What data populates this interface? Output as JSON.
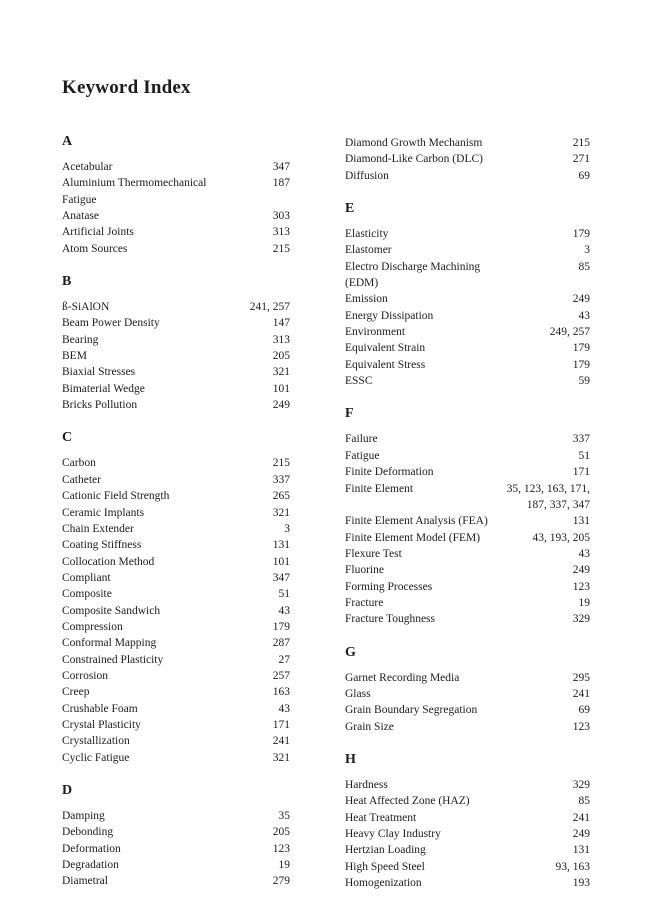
{
  "page": {
    "title": "Keyword Index"
  },
  "columns": [
    {
      "sections": [
        {
          "letter": "A",
          "entries": [
            {
              "term": "Acetabular",
              "pages": "347"
            },
            {
              "term": "Aluminium Thermomechanical Fatigue",
              "pages": "187"
            },
            {
              "term": "Anatase",
              "pages": "303"
            },
            {
              "term": "Artificial Joints",
              "pages": "313"
            },
            {
              "term": "Atom Sources",
              "pages": "215"
            }
          ]
        },
        {
          "letter": "B",
          "entries": [
            {
              "term": "ß-SiAlON",
              "pages": "241, 257"
            },
            {
              "term": "Beam Power Density",
              "pages": "147"
            },
            {
              "term": "Bearing",
              "pages": "313"
            },
            {
              "term": "BEM",
              "pages": "205"
            },
            {
              "term": "Biaxial Stresses",
              "pages": "321"
            },
            {
              "term": "Bimaterial Wedge",
              "pages": "101"
            },
            {
              "term": "Bricks Pollution",
              "pages": "249"
            }
          ]
        },
        {
          "letter": "C",
          "entries": [
            {
              "term": "Carbon",
              "pages": "215"
            },
            {
              "term": "Catheter",
              "pages": "337"
            },
            {
              "term": "Cationic Field Strength",
              "pages": "265"
            },
            {
              "term": "Ceramic Implants",
              "pages": "321"
            },
            {
              "term": "Chain Extender",
              "pages": "3"
            },
            {
              "term": "Coating Stiffness",
              "pages": "131"
            },
            {
              "term": "Collocation Method",
              "pages": "101"
            },
            {
              "term": "Compliant",
              "pages": "347"
            },
            {
              "term": "Composite",
              "pages": "51"
            },
            {
              "term": "Composite Sandwich",
              "pages": "43"
            },
            {
              "term": "Compression",
              "pages": "179"
            },
            {
              "term": "Conformal Mapping",
              "pages": "287"
            },
            {
              "term": "Constrained Plasticity",
              "pages": "27"
            },
            {
              "term": "Corrosion",
              "pages": "257"
            },
            {
              "term": "Creep",
              "pages": "163"
            },
            {
              "term": "Crushable Foam",
              "pages": "43"
            },
            {
              "term": "Crystal Plasticity",
              "pages": "171"
            },
            {
              "term": "Crystallization",
              "pages": "241"
            },
            {
              "term": "Cyclic Fatigue",
              "pages": "321"
            }
          ]
        },
        {
          "letter": "D",
          "entries": [
            {
              "term": "Damping",
              "pages": "35"
            },
            {
              "term": "Debonding",
              "pages": "205"
            },
            {
              "term": "Deformation",
              "pages": "123"
            },
            {
              "term": "Degradation",
              "pages": "19"
            },
            {
              "term": "Diametral",
              "pages": "279"
            }
          ]
        }
      ]
    },
    {
      "sections": [
        {
          "letter": "",
          "entries": [
            {
              "term": "Diamond Growth Mechanism",
              "pages": "215"
            },
            {
              "term": "Diamond-Like Carbon (DLC)",
              "pages": "271"
            },
            {
              "term": "Diffusion",
              "pages": "69"
            }
          ]
        },
        {
          "letter": "E",
          "entries": [
            {
              "term": "Elasticity",
              "pages": "179"
            },
            {
              "term": "Elastomer",
              "pages": "3"
            },
            {
              "term": "Electro Discharge Machining (EDM)",
              "pages": "85"
            },
            {
              "term": "Emission",
              "pages": "249"
            },
            {
              "term": "Energy Dissipation",
              "pages": "43"
            },
            {
              "term": "Environment",
              "pages": "249, 257"
            },
            {
              "term": "Equivalent Strain",
              "pages": "179"
            },
            {
              "term": "Equivalent Stress",
              "pages": "179"
            },
            {
              "term": "ESSC",
              "pages": "59"
            }
          ]
        },
        {
          "letter": "F",
          "entries": [
            {
              "term": "Failure",
              "pages": "337"
            },
            {
              "term": "Fatigue",
              "pages": "51"
            },
            {
              "term": "Finite Deformation",
              "pages": "171"
            },
            {
              "term": "Finite Element",
              "pages": "35, 123, 163, 171, 187, 337, 347"
            },
            {
              "term": "Finite Element Analysis (FEA)",
              "pages": "131"
            },
            {
              "term": "Finite Element Model (FEM)",
              "pages": "43, 193, 205"
            },
            {
              "term": "Flexure Test",
              "pages": "43"
            },
            {
              "term": "Fluorine",
              "pages": "249"
            },
            {
              "term": "Forming Processes",
              "pages": "123"
            },
            {
              "term": "Fracture",
              "pages": "19"
            },
            {
              "term": "Fracture Toughness",
              "pages": "329"
            }
          ]
        },
        {
          "letter": "G",
          "entries": [
            {
              "term": "Garnet Recording Media",
              "pages": "295"
            },
            {
              "term": "Glass",
              "pages": "241"
            },
            {
              "term": "Grain Boundary Segregation",
              "pages": "69"
            },
            {
              "term": "Grain Size",
              "pages": "123"
            }
          ]
        },
        {
          "letter": "H",
          "entries": [
            {
              "term": "Hardness",
              "pages": "329"
            },
            {
              "term": "Heat Affected Zone (HAZ)",
              "pages": "85"
            },
            {
              "term": "Heat Treatment",
              "pages": "241"
            },
            {
              "term": "Heavy Clay Industry",
              "pages": "249"
            },
            {
              "term": "Hertzian Loading",
              "pages": "131"
            },
            {
              "term": "High Speed Steel",
              "pages": "93, 163"
            },
            {
              "term": "Homogenization",
              "pages": "193"
            }
          ]
        }
      ]
    }
  ]
}
